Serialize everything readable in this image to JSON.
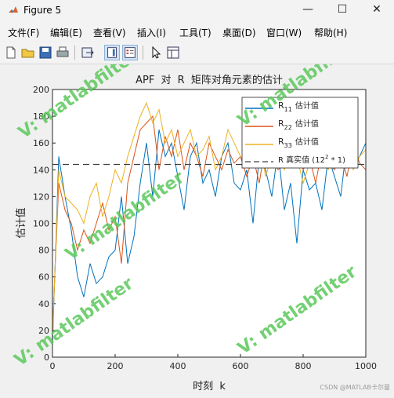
{
  "window": {
    "title": "Figure 5",
    "controls": {
      "minimize": "—",
      "maximize": "☐",
      "close": "✕"
    }
  },
  "menu": [
    "文件(F)",
    "编辑(E)",
    "查看(V)",
    "插入(I)",
    "工具(T)",
    "桌面(D)",
    "窗口(W)",
    "帮助(H)"
  ],
  "toolbar": [
    "new-file-icon",
    "open-folder-icon",
    "save-icon",
    "print-icon",
    "export-icon",
    "colorbar-icon",
    "legend-icon",
    "pointer-icon",
    "property-editor-icon"
  ],
  "colors": {
    "r11": "#0072BD",
    "r22": "#D95319",
    "r33": "#EDB120",
    "true": "#404040",
    "watermark": "#5cc85c"
  },
  "watermarks": [
    "V: matlabfilter",
    "V: matlabfilter",
    "V: matlabfilter",
    "V: matlabfilter",
    "V: matlabfilter"
  ],
  "footer_credit": "CSDN @MATLAB卡尔曼",
  "chart_data": {
    "type": "line",
    "title_parts": [
      "APF",
      "对",
      "R",
      "矩阵对角元素的估计"
    ],
    "xlabel_parts": [
      "时刻",
      "k"
    ],
    "ylabel": "估计值",
    "xlim": [
      0,
      1000
    ],
    "ylim": [
      0,
      200
    ],
    "xticks": [
      "0",
      "200",
      "400",
      "600",
      "800",
      "1000"
    ],
    "yticks": [
      "0",
      "20",
      "40",
      "60",
      "80",
      "100",
      "120",
      "140",
      "160",
      "180",
      "200"
    ],
    "legend_position": "top-right",
    "legend": [
      {
        "main": "R",
        "sub": "11",
        "suffix": "估计值"
      },
      {
        "main": "R",
        "sub": "22",
        "suffix": "估计值"
      },
      {
        "main": "R",
        "sub": "33",
        "suffix": "估计值"
      },
      {
        "main": "R 真实值 (12",
        "sup": "2",
        "suffix": " * 1)"
      }
    ],
    "true_value": 144,
    "x": [
      0,
      20,
      40,
      60,
      80,
      100,
      120,
      140,
      160,
      180,
      200,
      220,
      240,
      260,
      280,
      300,
      320,
      340,
      360,
      380,
      400,
      420,
      440,
      460,
      480,
      500,
      520,
      540,
      560,
      580,
      600,
      620,
      640,
      660,
      680,
      700,
      720,
      740,
      760,
      780,
      800,
      820,
      840,
      860,
      880,
      900,
      920,
      940,
      960,
      980,
      1000
    ],
    "series": [
      {
        "name": "R11 估计值",
        "values": [
          10,
          150,
          120,
          95,
          60,
          45,
          70,
          55,
          60,
          75,
          80,
          120,
          70,
          90,
          130,
          160,
          120,
          170,
          150,
          160,
          135,
          110,
          150,
          160,
          130,
          140,
          120,
          150,
          160,
          130,
          125,
          140,
          100,
          150,
          140,
          120,
          155,
          110,
          130,
          85,
          140,
          125,
          130,
          110,
          150,
          135,
          120,
          160,
          145,
          150,
          160
        ]
      },
      {
        "name": "R22 估计值",
        "values": [
          20,
          130,
          110,
          100,
          80,
          95,
          85,
          100,
          115,
          95,
          105,
          70,
          130,
          150,
          170,
          175,
          180,
          140,
          165,
          150,
          170,
          140,
          160,
          150,
          135,
          160,
          150,
          140,
          155,
          145,
          150,
          135,
          150,
          130,
          160,
          150,
          140,
          145,
          150,
          165,
          140,
          150,
          130,
          155,
          145,
          140,
          150,
          135,
          160,
          145,
          140
        ]
      },
      {
        "name": "R33 估计值",
        "values": [
          15,
          140,
          120,
          115,
          110,
          100,
          120,
          130,
          105,
          120,
          140,
          130,
          150,
          165,
          180,
          190,
          175,
          185,
          160,
          170,
          150,
          160,
          170,
          150,
          155,
          165,
          140,
          150,
          170,
          160,
          150,
          145,
          155,
          165,
          135,
          150,
          160,
          140,
          155,
          150,
          130,
          145,
          160,
          150,
          140,
          155,
          150,
          165,
          140,
          150,
          155
        ]
      }
    ]
  }
}
